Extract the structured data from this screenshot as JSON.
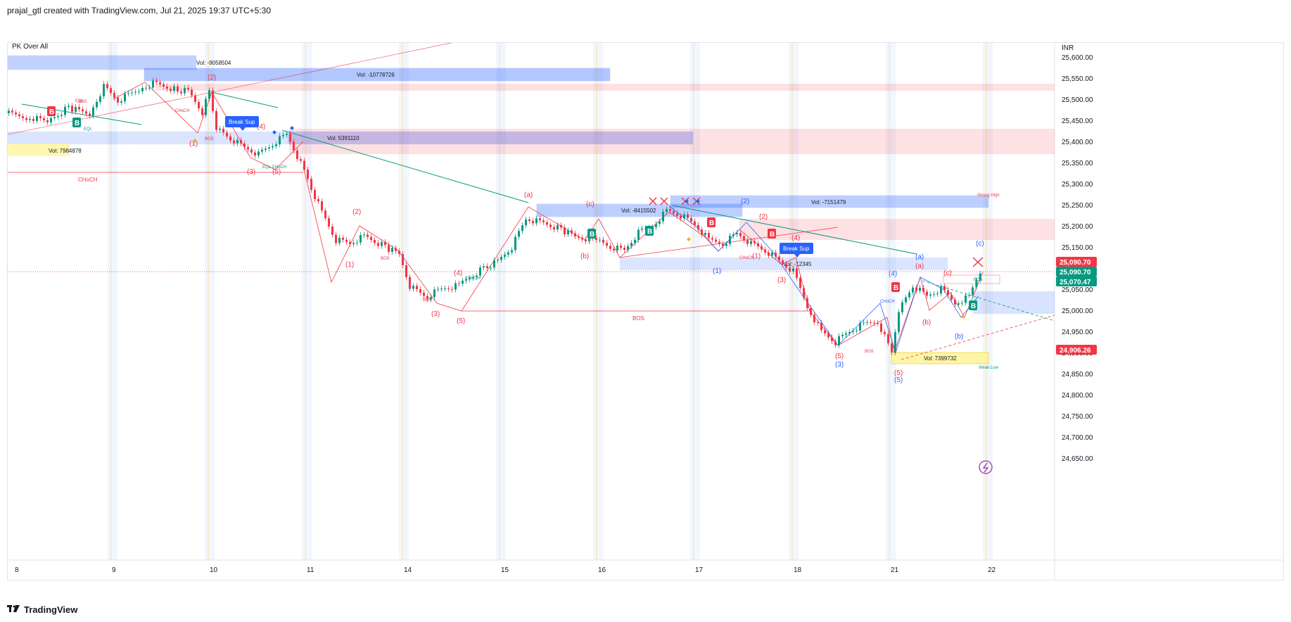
{
  "header": {
    "caption": "prajal_gtl created with TradingView.com, Jul 21, 2025 19:37 UTC+5:30"
  },
  "chart": {
    "indicator_name": "PK Over All",
    "currency": "INR",
    "price_axis": [
      "25,600.00",
      "25,550.00",
      "25,500.00",
      "25,450.00",
      "25,400.00",
      "25,350.00",
      "25,300.00",
      "25,250.00",
      "25,200.00",
      "25,150.00",
      "25,100.00",
      "25,050.00",
      "25,000.00",
      "24,950.00",
      "24,900.00",
      "24,850.00",
      "24,800.00",
      "24,750.00",
      "24,700.00",
      "24,650.00"
    ],
    "price_tags": [
      {
        "label": "25,090.70",
        "color": "#f23645"
      },
      {
        "label": "25,090.70",
        "color": "#089981"
      },
      {
        "label": "25,070.47",
        "color": "#089981"
      },
      {
        "label": "24,906.26",
        "color": "#f23645"
      }
    ],
    "date_axis": [
      "8",
      "9",
      "10",
      "11",
      "14",
      "15",
      "16",
      "17",
      "18",
      "21",
      "22"
    ],
    "volume_boxes": [
      {
        "label": "Vol: -9058504"
      },
      {
        "label": "Vol: -10778726"
      },
      {
        "label": "Vol: 5391110"
      },
      {
        "label": "Vol: 7984878"
      },
      {
        "label": "Vol: -8415502"
      },
      {
        "label": "Vol: -7151479"
      },
      {
        "label": "Vol: -12345"
      },
      {
        "label": "Vol: 7399732"
      }
    ],
    "break_labels": [
      "Break Sup",
      "Break Sup"
    ],
    "structure_labels": {
      "choch": "CHoCH",
      "bos": "BOS",
      "eql": "EQL",
      "eql_choch": "EQL CHoCH",
      "weak_low": "Weak Low",
      "strong_high": "Strong High"
    },
    "wave_labels_red": [
      "(1)",
      "(2)",
      "(3)",
      "(4)",
      "(5)",
      "(a)",
      "(b)",
      "(c)",
      "(2)",
      "(1)",
      "(3)",
      "(4)",
      "(5)",
      "(1)",
      "(2)",
      "(3)",
      "(4)",
      "(a)",
      "(b)",
      "(c)",
      "(5)"
    ],
    "wave_labels_blue": [
      "(1)",
      "(2)",
      "(3)",
      "(4)",
      "(5)",
      "(a)",
      "(b)",
      "(c)"
    ],
    "signal_b": "B",
    "colors": {
      "up": "#089981",
      "down": "#f23645",
      "blue_box": "#2962ff",
      "red_box": "#f23645"
    }
  },
  "footer": {
    "brand": "TradingView"
  }
}
